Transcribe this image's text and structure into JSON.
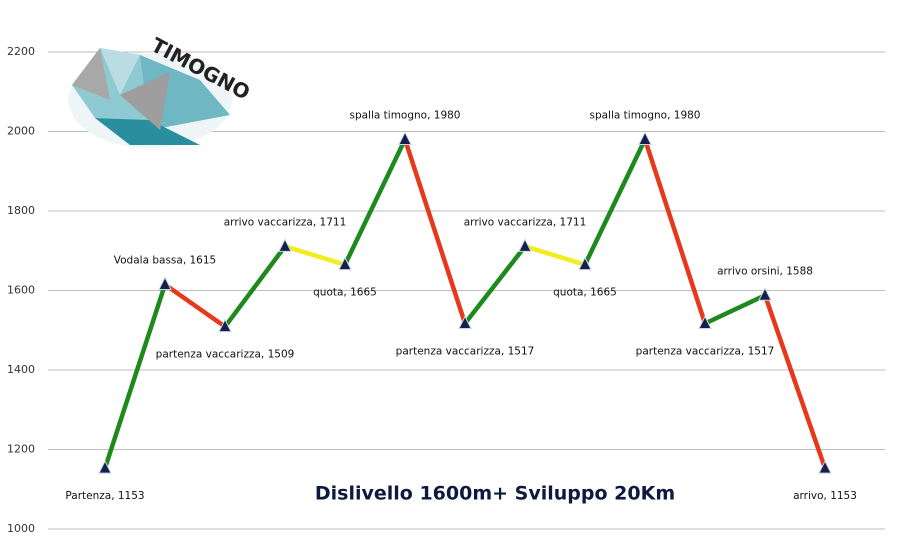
{
  "chart_data": {
    "type": "line",
    "title": "Dislivello 1600m+ Sviluppo 20Km",
    "logo": "TIMOGNO",
    "values": [
      1153,
      1615,
      1509,
      1711,
      1665,
      1980,
      1517,
      1711,
      1665,
      1980,
      1517,
      1588,
      1153
    ],
    "value_labels": [
      "Partenza, 1153",
      "Vodala bassa, 1615",
      "partenza vaccarizza, 1509",
      "arrivo vaccarizza, 1711",
      "quota, 1665",
      "spalla timogno, 1980",
      "partenza vaccarizza, 1517",
      "arrivo vaccarizza, 1711",
      "quota, 1665",
      "spalla timogno, 1980",
      "partenza vaccarizza, 1517",
      "arrivo orsini, 1588",
      "arrivo, 1153"
    ],
    "segment_colors": [
      "#1e8a1e",
      "#e8381a",
      "#1e8a1e",
      "#f2ee1e",
      "#1e8a1e",
      "#e8381a",
      "#1e8a1e",
      "#f2ee1e",
      "#1e8a1e",
      "#e8381a",
      "#1e8a1e",
      "#e8381a"
    ],
    "marker_color": "#14204a",
    "ylim": [
      1000,
      2200
    ],
    "yticks": [
      1000,
      1200,
      1400,
      1600,
      1800,
      2000,
      2200
    ],
    "grid": true
  }
}
